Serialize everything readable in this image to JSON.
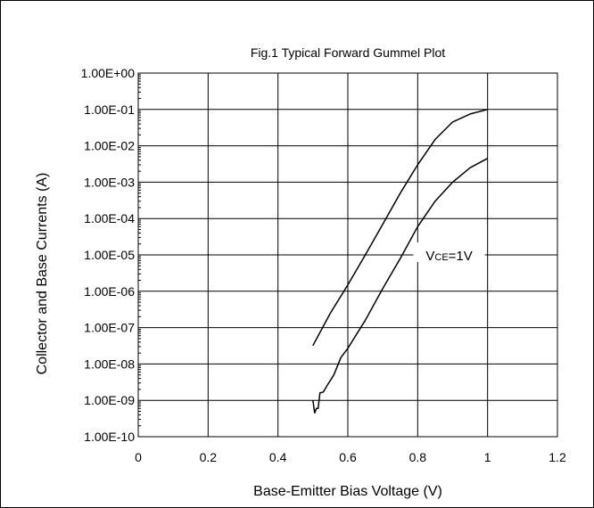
{
  "chart_data": {
    "type": "line",
    "title": "Fig.1 Typical Forward Gummel Plot",
    "xlabel": "Base-Emitter Bias Voltage (V)",
    "ylabel": "Collector and Base Currents (A)",
    "x_scale": "linear",
    "y_scale": "log",
    "xlim": [
      0,
      1.2
    ],
    "ylim": [
      1e-10,
      1
    ],
    "x_ticks": [
      0,
      0.2,
      0.4,
      0.6,
      0.8,
      1.0,
      1.2
    ],
    "x_tick_labels": [
      "0",
      "0.2",
      "0.4",
      "0.6",
      "0.8",
      "1",
      "1.2"
    ],
    "y_ticks": [
      1e-10,
      1e-09,
      1e-08,
      1e-07,
      1e-06,
      1e-05,
      0.0001,
      0.001,
      0.01,
      0.1,
      1
    ],
    "y_tick_labels": [
      "1.00E-10",
      "1.00E-09",
      "1.00E-08",
      "1.00E-07",
      "1.00E-06",
      "1.00E-05",
      "1.00E-04",
      "1.00E-03",
      "1.00E-02",
      "1.00E-01",
      "1.00E+00"
    ],
    "grid": true,
    "annotation": {
      "text": "V",
      "sub": "CE",
      "suffix": "=1V",
      "x": 0.89,
      "y": 1e-05
    },
    "series": [
      {
        "x": [
          0.5,
          0.55,
          0.6,
          0.65,
          0.7,
          0.75,
          0.8,
          0.85,
          0.9,
          0.95,
          1.0
        ],
        "y": [
          3.2e-08,
          2.5e-07,
          1.5e-06,
          1e-05,
          7e-05,
          0.0005,
          0.003,
          0.015,
          0.045,
          0.075,
          0.1
        ]
      },
      {
        "x": [
          0.5,
          0.505,
          0.51,
          0.515,
          0.52,
          0.53,
          0.54,
          0.56,
          0.58,
          0.6,
          0.65,
          0.7,
          0.75,
          0.8,
          0.85,
          0.9,
          0.95,
          1.0
        ],
        "y": [
          1e-09,
          4.5e-10,
          6e-10,
          6e-10,
          1.6e-09,
          1.7e-09,
          2.5e-09,
          5e-09,
          1.5e-08,
          2.7e-08,
          1.6e-07,
          1.2e-06,
          8e-06,
          6e-05,
          0.0003,
          0.001,
          0.0025,
          0.0045
        ]
      }
    ]
  }
}
